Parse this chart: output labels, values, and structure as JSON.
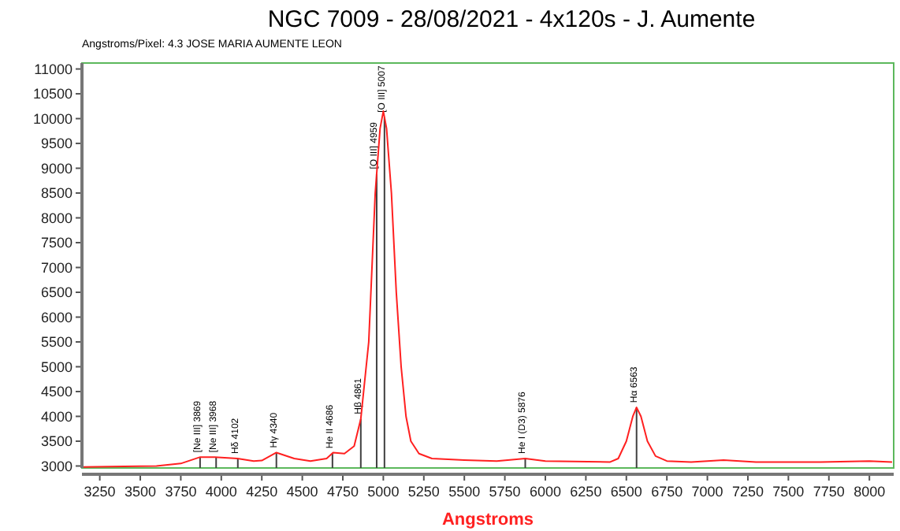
{
  "chart_data": {
    "type": "line",
    "title": "NGC 7009 - 28/08/2021 - 4x120s - J. Aumente",
    "subtitle": "Angstroms/Pixel: 4.3 JOSE MARIA AUMENTE LEON",
    "xlabel": "Angstroms",
    "x": [
      3150,
      3400,
      3600,
      3750,
      3870,
      3960,
      4100,
      4200,
      4250,
      4340,
      4450,
      4550,
      4650,
      4690,
      4760,
      4820,
      4861,
      4910,
      4950,
      4980,
      5000,
      5020,
      5050,
      5080,
      5110,
      5140,
      5170,
      5220,
      5300,
      5500,
      5700,
      5876,
      6000,
      6400,
      6450,
      6500,
      6540,
      6563,
      6590,
      6630,
      6680,
      6750,
      6900,
      7100,
      7300,
      7700,
      8000,
      8140
    ],
    "series": [
      {
        "color": "#ff2020",
        "values": [
          2980,
          2990,
          3000,
          3050,
          3180,
          3180,
          3150,
          3100,
          3110,
          3270,
          3150,
          3100,
          3150,
          3270,
          3250,
          3400,
          3950,
          5500,
          8500,
          9800,
          10150,
          9800,
          8500,
          6500,
          5000,
          4000,
          3500,
          3250,
          3150,
          3120,
          3100,
          3150,
          3100,
          3080,
          3150,
          3500,
          4000,
          4180,
          4000,
          3500,
          3200,
          3100,
          3080,
          3120,
          3080,
          3080,
          3100,
          3080
        ]
      }
    ],
    "xlim": [
      3140,
      8150
    ],
    "ylim": [
      2960,
      11120
    ],
    "xticks": [
      3250,
      3500,
      3750,
      4000,
      4250,
      4500,
      4750,
      5000,
      5250,
      5500,
      5750,
      6000,
      6250,
      6500,
      6750,
      7000,
      7250,
      7500,
      7750,
      8000
    ],
    "yticks": [
      3000,
      3500,
      4000,
      4500,
      5000,
      5500,
      6000,
      6500,
      7000,
      7500,
      8000,
      8500,
      9000,
      9500,
      10000,
      10500,
      11000
    ],
    "grid": false,
    "marker": "none",
    "line_style": "solid",
    "ref_lines": [
      {
        "axis": "x",
        "value": 3869,
        "label": "[Ne III] 3869",
        "color": "#404040"
      },
      {
        "axis": "x",
        "value": 3968,
        "label": "[Ne III] 3968",
        "color": "#404040"
      },
      {
        "axis": "x",
        "value": 4102,
        "label": "Hδ 4102",
        "color": "#404040"
      },
      {
        "axis": "x",
        "value": 4340,
        "label": "Hγ 4340",
        "color": "#404040"
      },
      {
        "axis": "x",
        "value": 4686,
        "label": "He II 4686",
        "color": "#404040"
      },
      {
        "axis": "x",
        "value": 4861,
        "label": "Hβ 4861",
        "color": "#404040"
      },
      {
        "axis": "x",
        "value": 4959,
        "label": "[O III] 4959",
        "color": "#404040"
      },
      {
        "axis": "x",
        "value": 5007,
        "label": "[O III] 5007",
        "color": "#404040"
      },
      {
        "axis": "x",
        "value": 5876,
        "label": "He I (D3) 5876",
        "color": "#404040"
      },
      {
        "axis": "x",
        "value": 6563,
        "label": "Hα 6563",
        "color": "#404040"
      }
    ]
  }
}
